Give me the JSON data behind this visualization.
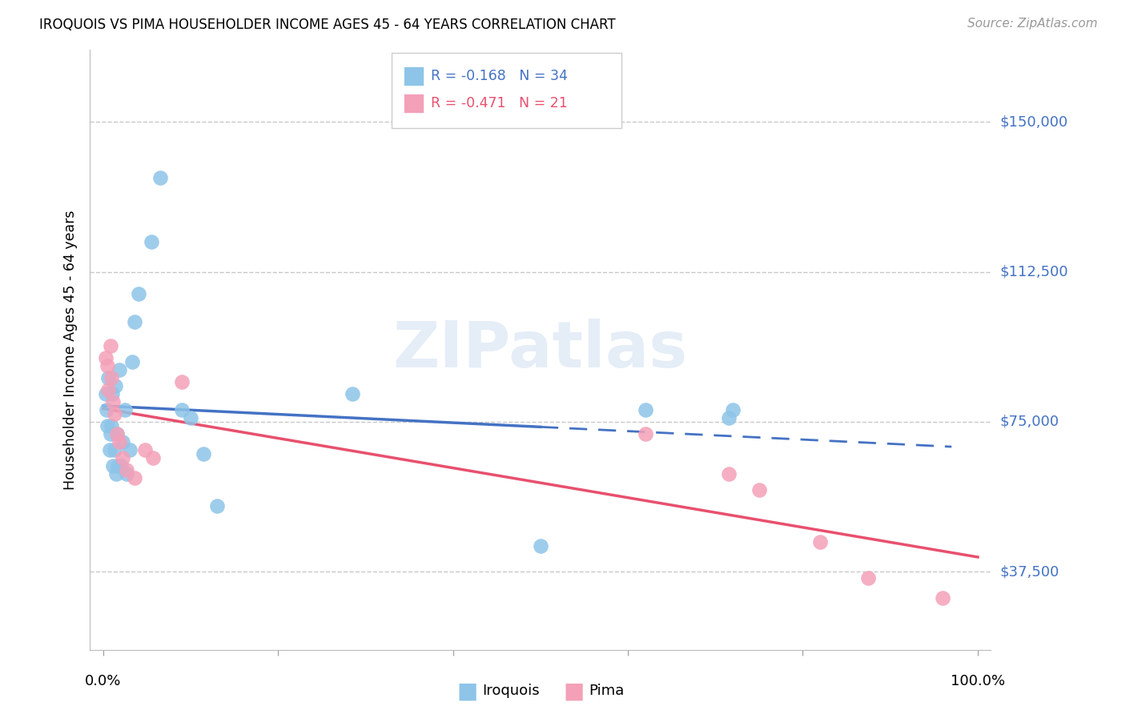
{
  "title": "IROQUOIS VS PIMA HOUSEHOLDER INCOME AGES 45 - 64 YEARS CORRELATION CHART",
  "source": "Source: ZipAtlas.com",
  "ylabel": "Householder Income Ages 45 - 64 years",
  "ytick_labels": [
    "$37,500",
    "$75,000",
    "$112,500",
    "$150,000"
  ],
  "ytick_values": [
    37500,
    75000,
    112500,
    150000
  ],
  "ylim": [
    18000,
    168000
  ],
  "xlim": [
    -0.015,
    1.015
  ],
  "legend_iroquois": "R = -0.168   N = 34",
  "legend_pima": "R = -0.471   N = 21",
  "iroquois_color": "#8dc4e8",
  "pima_color": "#f4a0b8",
  "iroquois_line_color": "#4472c4",
  "pima_line_color": "#e8506e",
  "background_color": "#ffffff",
  "grid_color": "#c8c8c8",
  "iroquois_x": [
    0.003,
    0.004,
    0.005,
    0.006,
    0.007,
    0.008,
    0.009,
    0.01,
    0.011,
    0.013,
    0.014,
    0.015,
    0.016,
    0.017,
    0.018,
    0.02,
    0.022,
    0.025,
    0.027,
    0.03,
    0.033,
    0.036,
    0.04,
    0.055,
    0.065,
    0.09,
    0.1,
    0.115,
    0.13,
    0.285,
    0.5,
    0.62,
    0.715,
    0.72
  ],
  "iroquois_y": [
    82000,
    78000,
    74000,
    86000,
    68000,
    72000,
    74000,
    82000,
    64000,
    68000,
    84000,
    62000,
    72000,
    64000,
    88000,
    64000,
    70000,
    78000,
    62000,
    68000,
    90000,
    100000,
    107000,
    120000,
    136000,
    78000,
    76000,
    67000,
    54000,
    82000,
    44000,
    78000,
    76000,
    78000
  ],
  "pima_x": [
    0.003,
    0.005,
    0.006,
    0.008,
    0.009,
    0.011,
    0.013,
    0.016,
    0.018,
    0.022,
    0.027,
    0.036,
    0.048,
    0.057,
    0.09,
    0.62,
    0.715,
    0.75,
    0.82,
    0.875,
    0.96
  ],
  "pima_y": [
    91000,
    89000,
    83000,
    94000,
    86000,
    80000,
    77000,
    72000,
    70000,
    66000,
    63000,
    61000,
    68000,
    66000,
    85000,
    72000,
    62000,
    58000,
    45000,
    36000,
    31000
  ],
  "iq_line_x0": 0.0,
  "iq_line_x1_solid": 0.5,
  "iq_line_x1_dash": 0.97,
  "pi_line_x0": 0.0,
  "pi_line_x1": 1.0
}
